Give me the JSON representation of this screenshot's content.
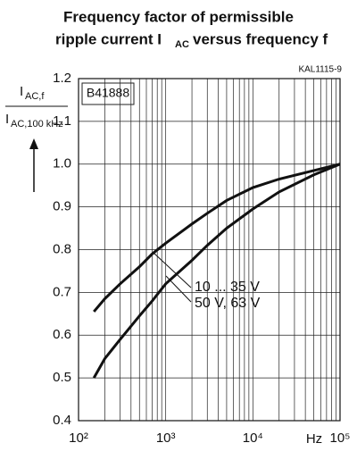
{
  "chart_data": {
    "type": "line",
    "title": {
      "line1": "Frequency factor of permissible",
      "line2_start": "ripple current I",
      "line2_sub": "AC",
      "line2_end": "versus frequency f"
    },
    "code": "KAL1115-9",
    "series_code": "B41888",
    "y_label": {
      "num": "I",
      "num_sub": "AC,f",
      "den": "I",
      "den_sub": "AC,100 kHz"
    },
    "x_unit": "Hz",
    "x": [
      150,
      200,
      300,
      500,
      700,
      1000,
      2000,
      3000,
      5000,
      10000,
      20000,
      50000,
      100000
    ],
    "series": [
      {
        "name": "10 ... 35 V",
        "color": "#111111",
        "values": [
          0.655,
          0.685,
          0.72,
          0.76,
          0.79,
          0.815,
          0.86,
          0.885,
          0.915,
          0.945,
          0.965,
          0.985,
          1.0
        ]
      },
      {
        "name": "50 V, 63 V",
        "color": "#111111",
        "values": [
          0.5,
          0.545,
          0.59,
          0.645,
          0.68,
          0.72,
          0.775,
          0.81,
          0.85,
          0.895,
          0.935,
          0.975,
          1.0
        ]
      }
    ],
    "xlog": true,
    "xlim": [
      100,
      100000
    ],
    "xticks": [
      {
        "value": 100,
        "label": "10²"
      },
      {
        "value": 1000,
        "label": "10³"
      },
      {
        "value": 10000,
        "label": "10⁴"
      },
      {
        "value": 100000,
        "label": "10⁵"
      }
    ],
    "ylim": [
      0.4,
      1.2
    ],
    "yticks": [
      0.4,
      0.5,
      0.6,
      0.7,
      0.8,
      0.9,
      {
        "value": 1,
        "label": "1.0"
      },
      1.1,
      1.2
    ],
    "grid": true
  }
}
